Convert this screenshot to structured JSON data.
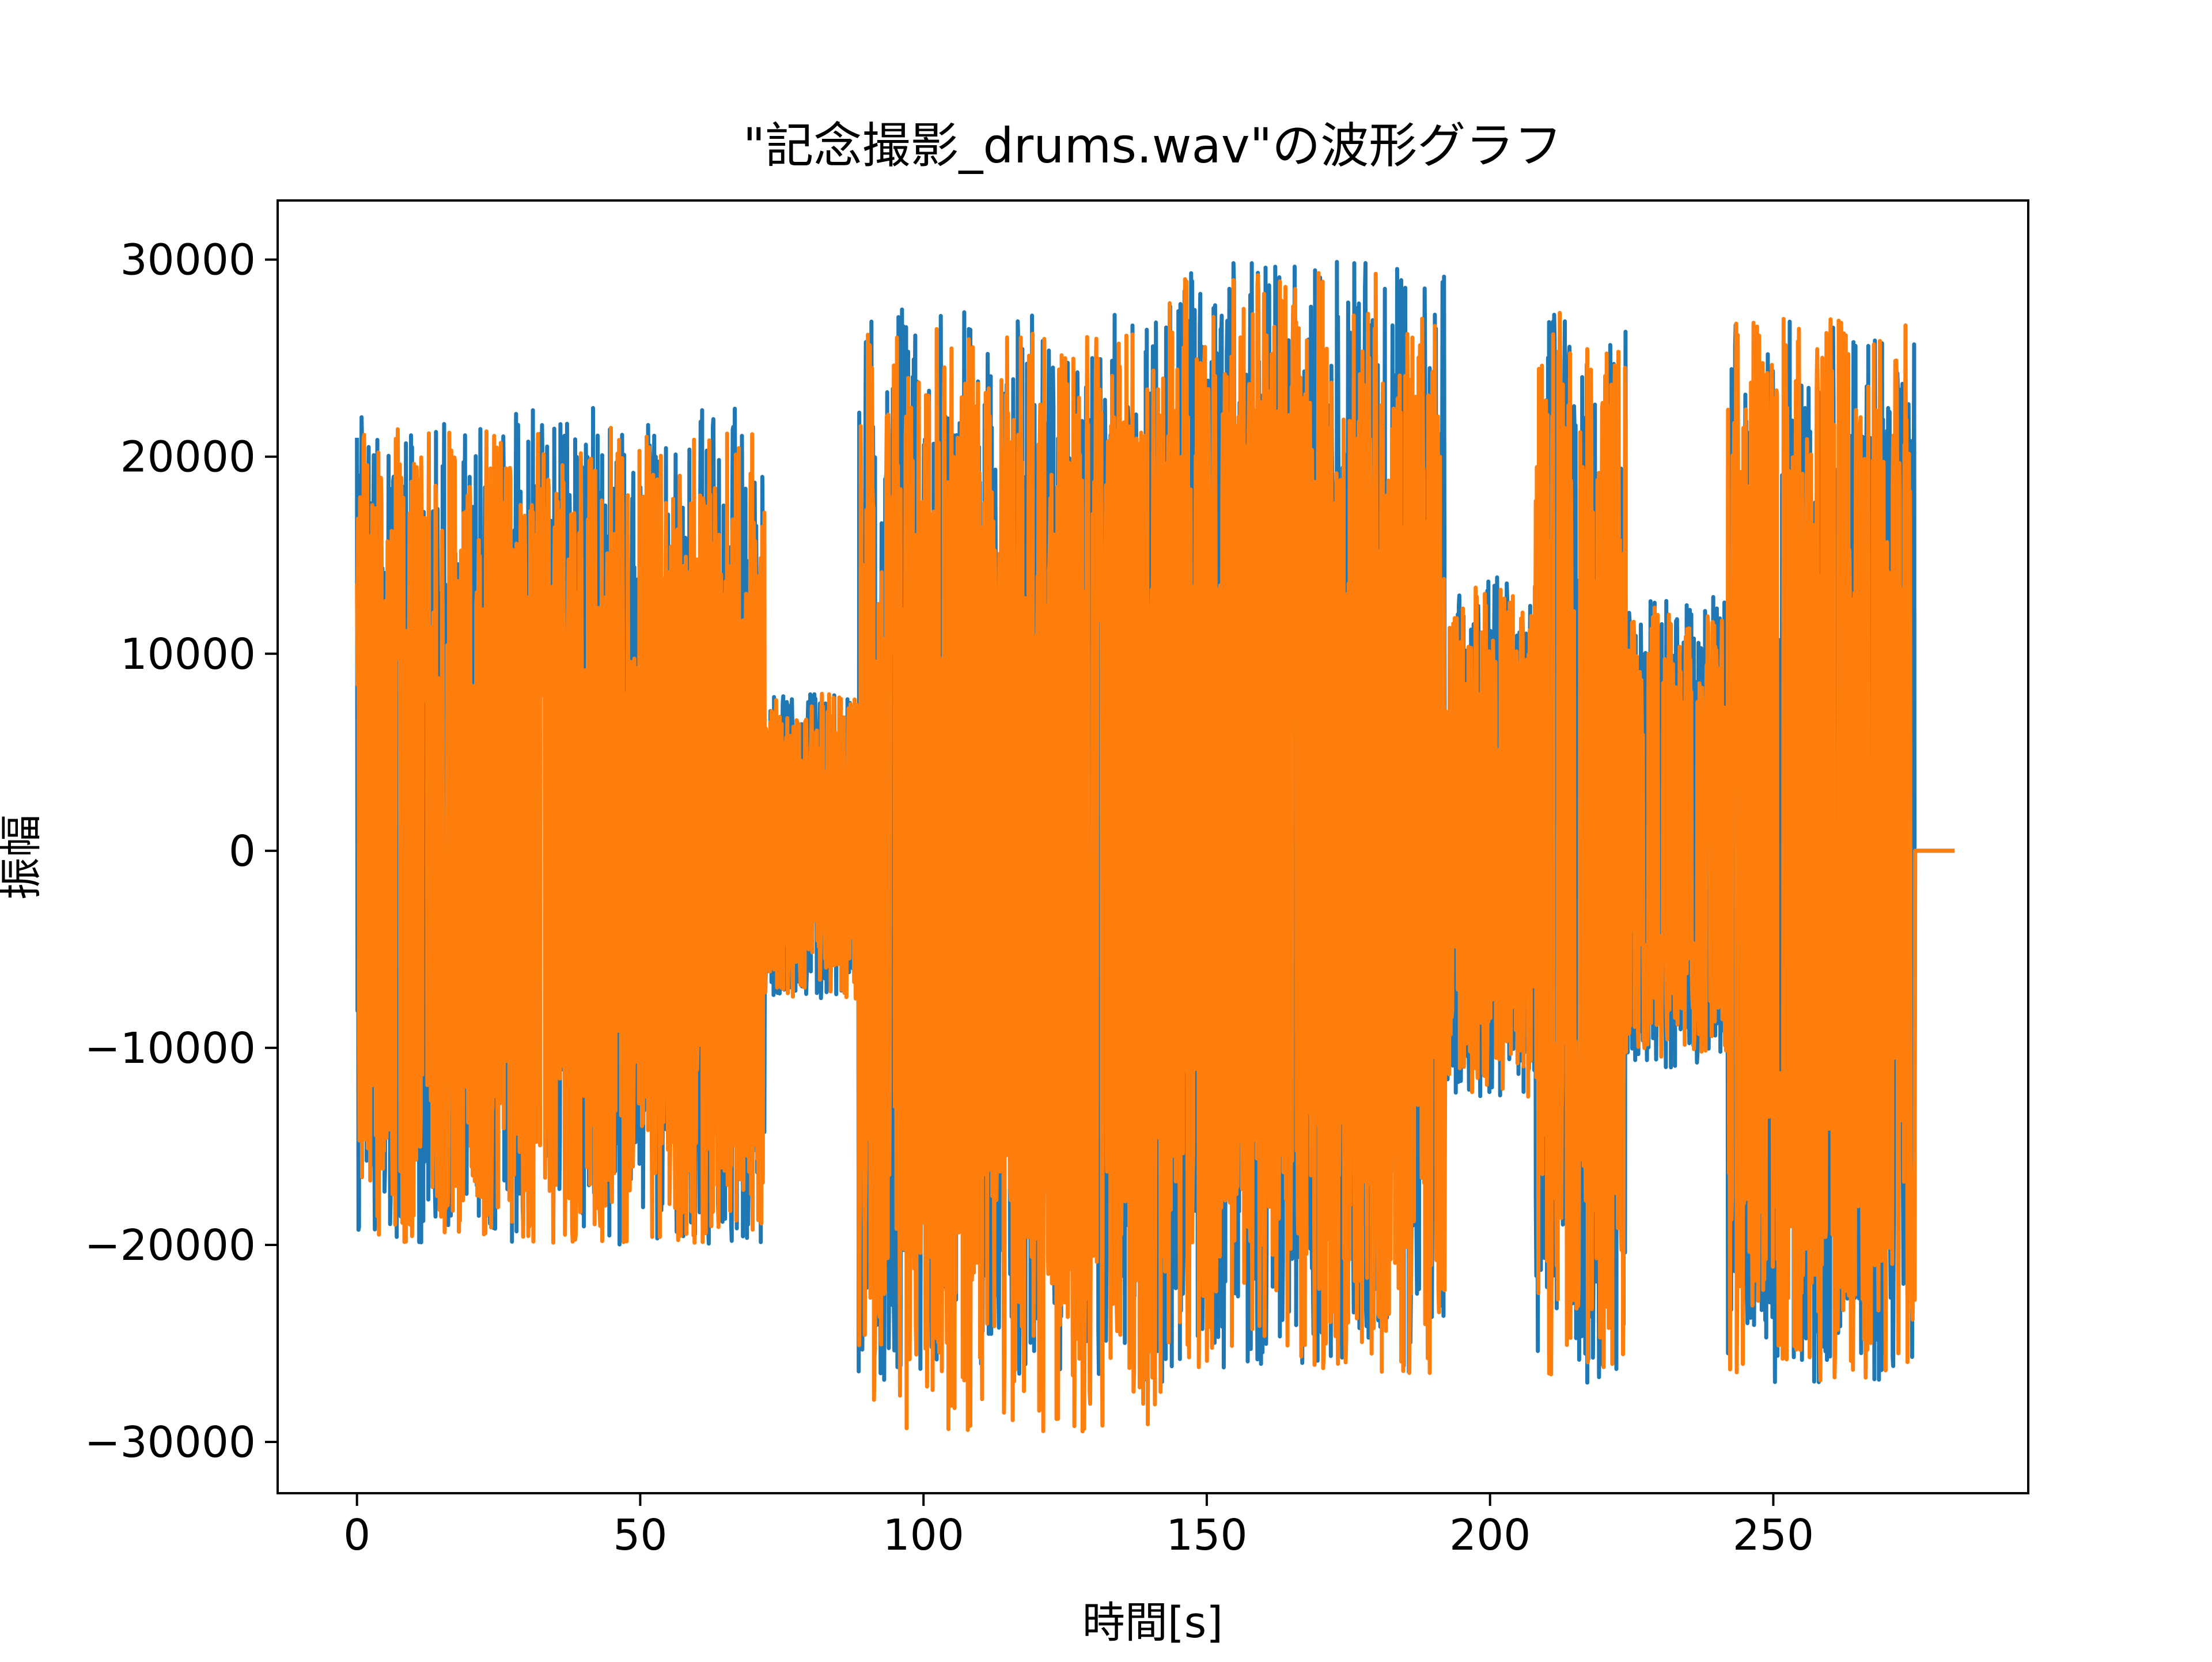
{
  "chart_data": {
    "type": "line",
    "title": "\"記念撮影_drums.wav\"の波形グラフ",
    "xlabel": "時間[s]",
    "ylabel": "振幅",
    "xlim": [
      -14,
      295
    ],
    "ylim": [
      -32600,
      33000
    ],
    "xticks": [
      0,
      50,
      100,
      150,
      200,
      250
    ],
    "yticks": [
      -30000,
      -20000,
      -10000,
      0,
      10000,
      20000,
      30000
    ],
    "xtick_labels": [
      "0",
      "50",
      "100",
      "150",
      "200",
      "250"
    ],
    "ytick_labels": [
      "−30000",
      "−20000",
      "−10000",
      "0",
      "10000",
      "20000",
      "30000"
    ],
    "grid": false,
    "legend": "none",
    "series": [
      {
        "color": "#1f77b4",
        "description": "channel 1 waveform envelope (approximate min/max amplitude by segment)",
        "segments": [
          {
            "t_start": 0,
            "t_end": 72,
            "max": 22500,
            "min": -20000
          },
          {
            "t_start": 72,
            "t_end": 88.5,
            "max": 8000,
            "min": -7500
          },
          {
            "t_start": 88.5,
            "t_end": 143,
            "max": 27500,
            "min": -27000
          },
          {
            "t_start": 143,
            "t_end": 192,
            "max": 30000,
            "min": -26500
          },
          {
            "t_start": 192,
            "t_end": 208,
            "max": 14000,
            "min": -12500
          },
          {
            "t_start": 208,
            "t_end": 224,
            "max": 27500,
            "min": -27000
          },
          {
            "t_start": 224,
            "t_end": 242,
            "max": 13000,
            "min": -11000
          },
          {
            "t_start": 242,
            "t_end": 275,
            "max": 27000,
            "min": -27000
          },
          {
            "t_start": 275,
            "t_end": 282,
            "max": 0,
            "min": 0
          }
        ]
      },
      {
        "color": "#ff7f0e",
        "description": "channel 2 waveform envelope (approximate min/max amplitude by segment)",
        "segments": [
          {
            "t_start": 0,
            "t_end": 72,
            "max": 21500,
            "min": -20000
          },
          {
            "t_start": 72,
            "t_end": 88.5,
            "max": 8000,
            "min": -7500
          },
          {
            "t_start": 88.5,
            "t_end": 143,
            "max": 26500,
            "min": -29500
          },
          {
            "t_start": 143,
            "t_end": 192,
            "max": 29500,
            "min": -26500
          },
          {
            "t_start": 192,
            "t_end": 208,
            "max": 13500,
            "min": -12500
          },
          {
            "t_start": 208,
            "t_end": 224,
            "max": 27500,
            "min": -27000
          },
          {
            "t_start": 224,
            "t_end": 242,
            "max": 12500,
            "min": -10500
          },
          {
            "t_start": 242,
            "t_end": 275,
            "max": 27000,
            "min": -27000
          },
          {
            "t_start": 275,
            "t_end": 282,
            "max": 0,
            "min": 0
          }
        ]
      }
    ]
  }
}
